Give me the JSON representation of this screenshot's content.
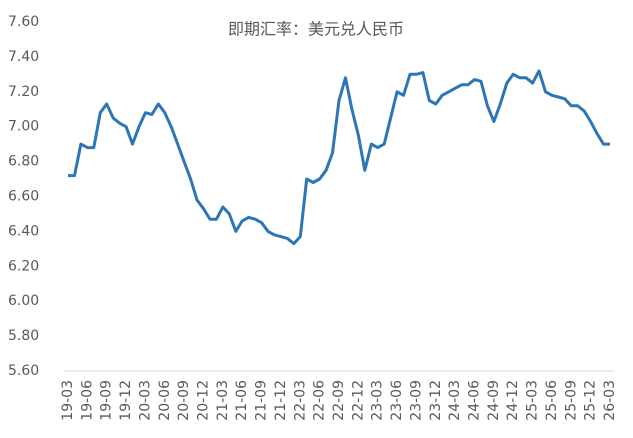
{
  "chart_data": {
    "type": "line",
    "title": "即期汇率：美元兑人民币",
    "categories": [
      "19-03",
      null,
      null,
      "19-06",
      null,
      null,
      "19-09",
      null,
      null,
      "19-12",
      null,
      null,
      "20-03",
      null,
      null,
      "20-06",
      null,
      null,
      "20-09",
      null,
      null,
      "20-12",
      null,
      null,
      "21-03",
      null,
      null,
      "21-06",
      null,
      null,
      "21-09",
      null,
      null,
      "21-12",
      null,
      null,
      "22-03",
      null,
      null,
      "22-06",
      null,
      null,
      "22-09",
      null,
      null,
      "22-12",
      null,
      null,
      "23-03",
      null,
      null,
      "23-06",
      null,
      null,
      "23-09",
      null,
      null,
      "23-12",
      null,
      null,
      "24-03",
      null,
      null,
      "24-06",
      null,
      null,
      "24-09",
      null,
      null,
      "24-12",
      null,
      null,
      "25-03",
      null,
      null,
      "25-06",
      null,
      null,
      "25-09",
      null,
      null,
      "25-12",
      null,
      null,
      "26-03"
    ],
    "series": [
      {
        "color": "#2e75b6",
        "values": [
          6.72,
          6.72,
          6.9,
          6.88,
          6.88,
          7.08,
          7.13,
          7.05,
          7.02,
          7.0,
          6.9,
          7.0,
          7.08,
          7.07,
          7.13,
          7.08,
          7.0,
          6.9,
          6.8,
          6.7,
          6.58,
          6.53,
          6.47,
          6.47,
          6.54,
          6.5,
          6.4,
          6.46,
          6.48,
          6.47,
          6.45,
          6.4,
          6.38,
          6.37,
          6.36,
          6.33,
          6.37,
          6.7,
          6.68,
          6.7,
          6.75,
          6.85,
          7.15,
          7.28,
          7.1,
          6.95,
          6.75,
          6.9,
          6.88,
          6.9,
          7.05,
          7.2,
          7.18,
          7.3,
          7.3,
          7.31,
          7.15,
          7.13,
          7.18,
          7.2,
          7.22,
          7.24,
          7.24,
          7.27,
          7.26,
          7.12,
          7.03,
          7.13,
          7.25,
          7.3,
          7.28,
          7.28,
          7.25,
          7.32,
          7.2,
          7.18,
          7.17,
          7.16,
          7.12,
          7.12,
          7.09,
          7.03,
          6.96,
          6.9,
          6.9
        ]
      }
    ],
    "ylim": [
      5.6,
      7.6
    ],
    "yticks": [
      {
        "value": 5.6,
        "label": "5.60"
      },
      {
        "value": 5.8,
        "label": "5.80"
      },
      {
        "value": 6.0,
        "label": "6.00"
      },
      {
        "value": 6.2,
        "label": "6.20"
      },
      {
        "value": 6.4,
        "label": "6.40"
      },
      {
        "value": 6.6,
        "label": "6.60"
      },
      {
        "value": 6.8,
        "label": "6.80"
      },
      {
        "value": 7.0,
        "label": "7.00"
      },
      {
        "value": 7.2,
        "label": "7.20"
      },
      {
        "value": 7.4,
        "label": "7.40"
      },
      {
        "value": 7.6,
        "label": "7.60"
      }
    ],
    "grid": false
  }
}
